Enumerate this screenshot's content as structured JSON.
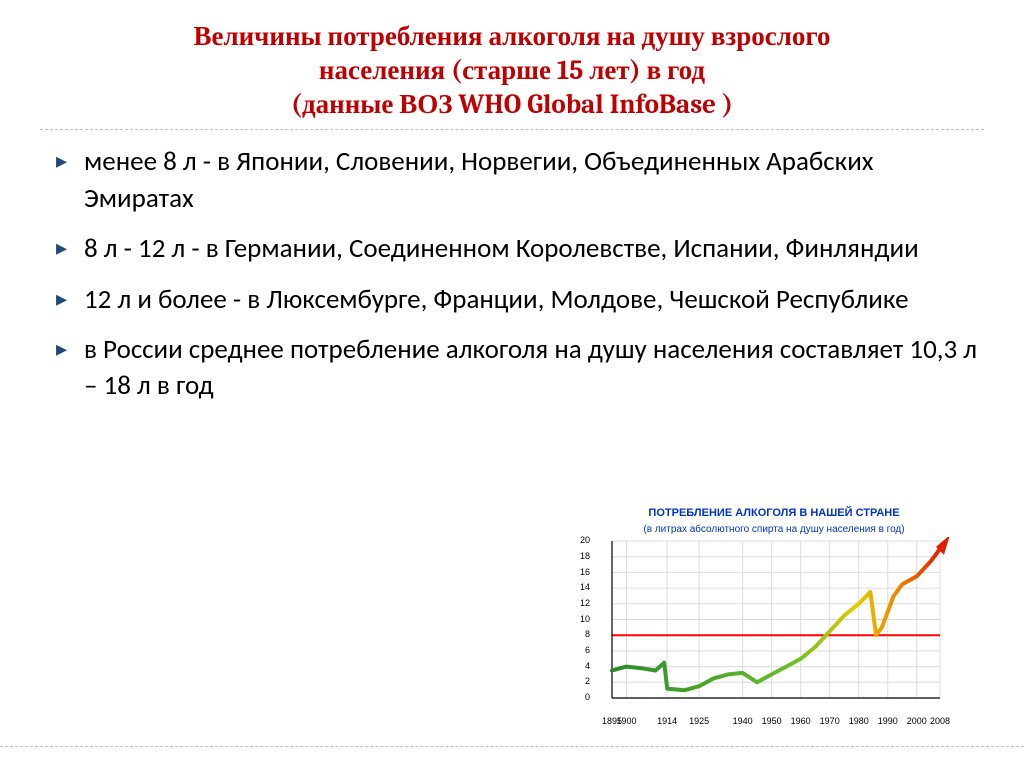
{
  "title_line1": "Величины потребления алкоголя на душу взрослого",
  "title_line2": "населения (старше 15 лет) в год",
  "title_line3": "(данные ВОЗ WHO Global InfoBase )",
  "bullets": [
    "менее 8 л - в Японии, Словении, Норвегии, Объединенных Арабских Эмиратах",
    "8 л  - 12 л - в Германии, Соединенном Королевстве, Испании,  Финляндии",
    "12 л и более -  в Люксембурге, Франции, Молдове, Чешской Республике",
    "в России среднее потребление алкоголя на душу населения составляет 10,3 л – 18 л в год"
  ],
  "chart": {
    "title": "ПОТРЕБЛЕНИЕ АЛКОГОЛЯ В НАШЕЙ СТРАНЕ",
    "subtitle": "(в литрах абсолютного спирта на душу населения в год)",
    "background_color": "#ffffff",
    "grid_color": "#dcdcdc",
    "axis_color": "#000000",
    "ref_line_color": "#ff0000",
    "ref_line_value": 8,
    "y": {
      "min": 0,
      "max": 20,
      "step": 2
    },
    "x": {
      "min": 1895,
      "max": 2008,
      "ticks": [
        1895,
        1900,
        1914,
        1925,
        1940,
        1950,
        1960,
        1970,
        1980,
        1990,
        2000,
        2008
      ]
    },
    "series": {
      "points": [
        [
          1895,
          3.5
        ],
        [
          1900,
          4.0
        ],
        [
          1905,
          3.8
        ],
        [
          1910,
          3.5
        ],
        [
          1913,
          4.5
        ],
        [
          1914,
          1.2
        ],
        [
          1920,
          1.0
        ],
        [
          1925,
          1.5
        ],
        [
          1930,
          2.5
        ],
        [
          1935,
          3.0
        ],
        [
          1940,
          3.2
        ],
        [
          1945,
          2.0
        ],
        [
          1950,
          3.0
        ],
        [
          1955,
          4.0
        ],
        [
          1960,
          5.0
        ],
        [
          1965,
          6.5
        ],
        [
          1970,
          8.5
        ],
        [
          1975,
          10.5
        ],
        [
          1980,
          12.0
        ],
        [
          1984,
          13.5
        ],
        [
          1986,
          8.0
        ],
        [
          1988,
          9.0
        ],
        [
          1992,
          13.0
        ],
        [
          1995,
          14.5
        ],
        [
          2000,
          15.5
        ],
        [
          2005,
          17.5
        ],
        [
          2008,
          19.0
        ]
      ],
      "line_width": 4,
      "gradient_stops": [
        {
          "offset": "0%",
          "color": "#2a8a2a"
        },
        {
          "offset": "55%",
          "color": "#6abf2a"
        },
        {
          "offset": "75%",
          "color": "#e8c800"
        },
        {
          "offset": "88%",
          "color": "#f08000"
        },
        {
          "offset": "100%",
          "color": "#e02000"
        }
      ]
    },
    "arrow": {
      "color": "#e02000"
    }
  }
}
